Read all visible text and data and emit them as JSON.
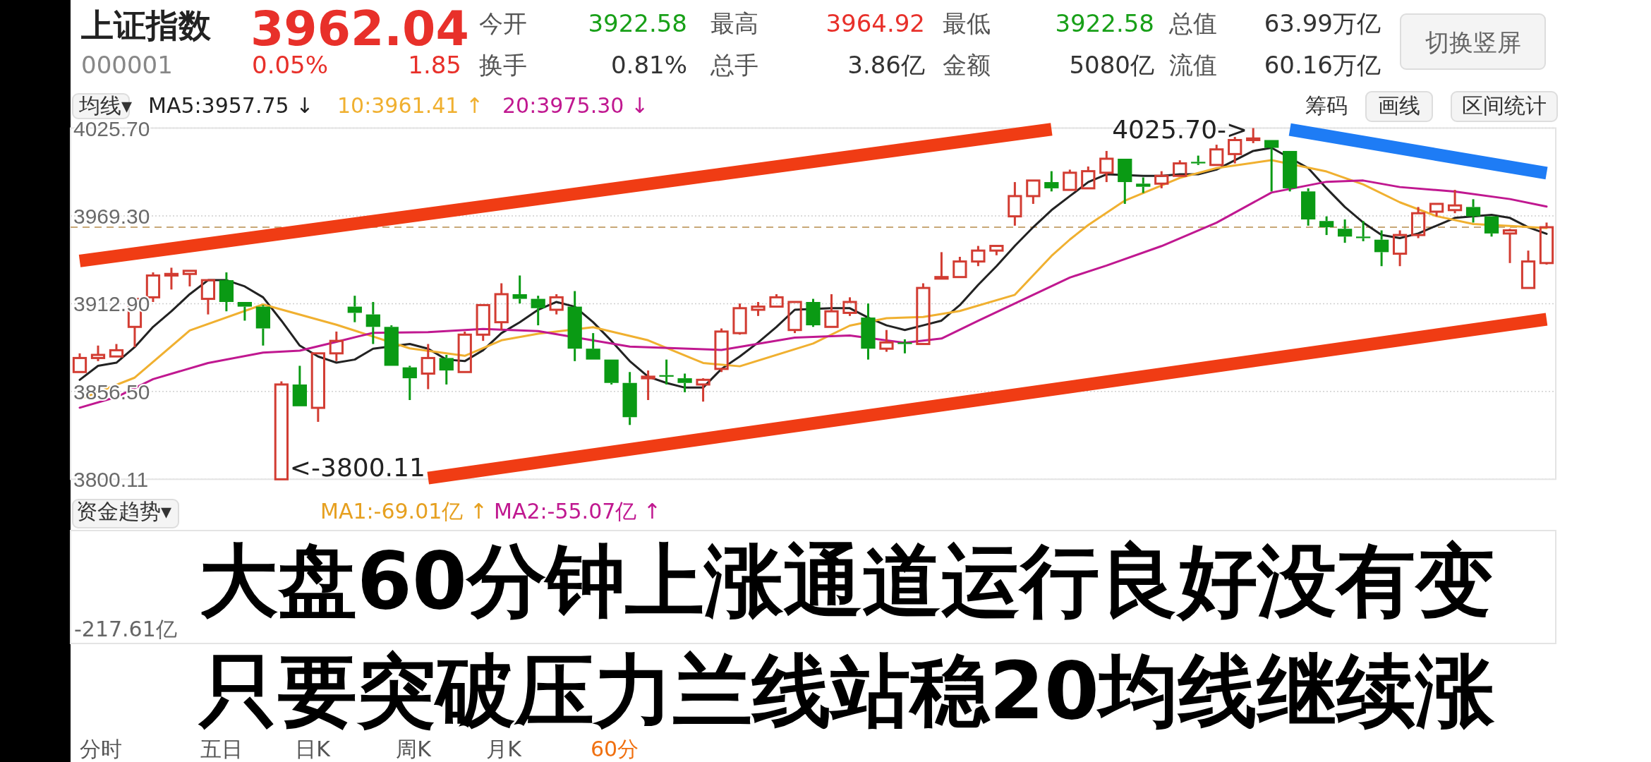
{
  "chart_data": {
    "type": "candlestick",
    "title": "上证指数",
    "categories": [
      null,
      null,
      null,
      null,
      null,
      null,
      null,
      null,
      null,
      null,
      null,
      null,
      null,
      null,
      null,
      null,
      null,
      null,
      null,
      null,
      null,
      null,
      null,
      null,
      null,
      null,
      null,
      null,
      null,
      null,
      null,
      null,
      null,
      null,
      null,
      null,
      null,
      null,
      null,
      null,
      null,
      null,
      null,
      null,
      null,
      null,
      null,
      null,
      null,
      null,
      null,
      null,
      null,
      null,
      null,
      null,
      null,
      null,
      null,
      null,
      null,
      null,
      null,
      null,
      null,
      null,
      null,
      null,
      null,
      null,
      null,
      null,
      null,
      null,
      null,
      null,
      null,
      null,
      null,
      null,
      null
    ],
    "ohlc": [
      [
        3869,
        3881,
        3869,
        3878
      ],
      [
        3878,
        3886,
        3876,
        3880
      ],
      [
        3879,
        3887,
        3879,
        3883
      ],
      [
        3898,
        3916,
        3885,
        3916
      ],
      [
        3917,
        3933,
        3914,
        3931
      ],
      [
        3931,
        3936,
        3922,
        3932
      ],
      [
        3932,
        3934,
        3924,
        3934
      ],
      [
        3916,
        3928,
        3906,
        3928
      ],
      [
        3928,
        3933,
        3908,
        3914
      ],
      [
        3914,
        3914,
        3902,
        3911
      ],
      [
        3911,
        3912,
        3886,
        3897
      ],
      [
        3800.11,
        3863,
        3800.11,
        3861
      ],
      [
        3861,
        3873,
        3847,
        3847
      ],
      [
        3846,
        3881,
        3837,
        3881
      ],
      [
        3881,
        3895,
        3876,
        3889
      ],
      [
        3911,
        3918,
        3901,
        3907
      ],
      [
        3906,
        3914,
        3887,
        3898
      ],
      [
        3898,
        3899,
        3873,
        3873
      ],
      [
        3872,
        3873,
        3851,
        3865
      ],
      [
        3868,
        3887,
        3858,
        3878
      ],
      [
        3878,
        3880,
        3861,
        3870
      ],
      [
        3869,
        3895,
        3869,
        3893
      ],
      [
        3893,
        3912,
        3889,
        3912
      ],
      [
        3901,
        3926,
        3896,
        3919
      ],
      [
        3919,
        3931,
        3913,
        3916
      ],
      [
        3916,
        3918,
        3899,
        3910
      ],
      [
        3909,
        3919,
        3906,
        3917
      ],
      [
        3911,
        3921,
        3876,
        3884
      ],
      [
        3884,
        3894,
        3877,
        3877
      ],
      [
        3877,
        3877,
        3861,
        3862
      ],
      [
        3862,
        3869,
        3835,
        3840
      ],
      [
        3865,
        3870,
        3851,
        3866
      ],
      [
        3867,
        3877,
        3861,
        3866
      ],
      [
        3865,
        3868,
        3856,
        3862
      ],
      [
        3861,
        3865,
        3850,
        3864
      ],
      [
        3871,
        3897,
        3869,
        3895
      ],
      [
        3894,
        3913,
        3893,
        3910
      ],
      [
        3909,
        3914,
        3905,
        3911
      ],
      [
        3911,
        3919,
        3911,
        3917
      ],
      [
        3896,
        3914,
        3894,
        3914
      ],
      [
        3914,
        3916,
        3898,
        3899
      ],
      [
        3898,
        3919,
        3898,
        3908
      ],
      [
        3907,
        3917,
        3905,
        3914
      ],
      [
        3904,
        3913,
        3877,
        3884
      ],
      [
        3884,
        3896,
        3882,
        3888
      ],
      [
        3888,
        3890,
        3881,
        3887
      ],
      [
        3887,
        3926,
        3887,
        3923
      ],
      [
        3929,
        3946,
        3929,
        3930
      ],
      [
        3930,
        3943,
        3930,
        3940
      ],
      [
        3940,
        3950,
        3937,
        3947
      ],
      [
        3947,
        3950,
        3944,
        3950
      ],
      [
        3969,
        3991,
        3963,
        3982
      ],
      [
        3982,
        3992,
        3977,
        3992
      ],
      [
        3991,
        3998,
        3985,
        3987
      ],
      [
        3986,
        3999,
        3986,
        3997
      ],
      [
        3987,
        4001,
        3987,
        3998
      ],
      [
        3997,
        4011,
        3991,
        4006
      ],
      [
        4006,
        4006,
        3977,
        3991
      ],
      [
        3990,
        3994,
        3984,
        3988
      ],
      [
        3990,
        3998,
        3987,
        3995
      ],
      [
        3995,
        4005,
        3995,
        4003
      ],
      [
        4004,
        4008,
        4002,
        4003
      ],
      [
        4002,
        4015,
        4002,
        4012
      ],
      [
        4009,
        4020,
        4003,
        4018
      ],
      [
        4018,
        4025.7,
        4016,
        4019
      ],
      [
        4018,
        4018,
        3985,
        4013
      ],
      [
        4011,
        4011,
        3985,
        3987
      ],
      [
        3985,
        3987,
        3963,
        3967
      ],
      [
        3966,
        3969,
        3957,
        3962
      ],
      [
        3961,
        3967,
        3952,
        3956
      ],
      [
        3956,
        3966,
        3953,
        3955
      ],
      [
        3954,
        3960,
        3937,
        3946
      ],
      [
        3945,
        3960,
        3937,
        3957
      ],
      [
        3957,
        3975,
        3955,
        3971
      ],
      [
        3972,
        3977,
        3969,
        3977
      ],
      [
        3973,
        3986,
        3971,
        3976
      ],
      [
        3975,
        3980,
        3965,
        3969
      ],
      [
        3969,
        3969,
        3956,
        3958
      ],
      [
        3958,
        3961,
        3939,
        3960
      ],
      [
        3923,
        3947,
        3923,
        3940
      ],
      [
        3939,
        3965,
        3938,
        3962
      ]
    ],
    "colors": [
      "#d23c32",
      "#d23c32",
      "#d23c32",
      "#d23c32",
      "#d23c32",
      "#d23c32",
      "#d23c32",
      "#d23c32",
      "#0a9a14",
      "#0a9a14",
      "#0a9a14",
      "#d23c32",
      "#0a9a14",
      "#d23c32",
      "#d23c32",
      "#0a9a14",
      "#0a9a14",
      "#0a9a14",
      "#0a9a14",
      "#d23c32",
      "#0a9a14",
      "#d23c32",
      "#d23c32",
      "#d23c32",
      "#0a9a14",
      "#0a9a14",
      "#d23c32",
      "#0a9a14",
      "#0a9a14",
      "#0a9a14",
      "#0a9a14",
      "#d23c32",
      "#0a9a14",
      "#0a9a14",
      "#d23c32",
      "#d23c32",
      "#d23c32",
      "#d23c32",
      "#d23c32",
      "#d23c32",
      "#0a9a14",
      "#d23c32",
      "#d23c32",
      "#0a9a14",
      "#d23c32",
      "#0a9a14",
      "#d23c32",
      "#d23c32",
      "#d23c32",
      "#d23c32",
      "#d23c32",
      "#d23c32",
      "#d23c32",
      "#0a9a14",
      "#d23c32",
      "#d23c32",
      "#d23c32",
      "#0a9a14",
      "#0a9a14",
      "#d23c32",
      "#d23c32",
      "#0a9a14",
      "#d23c32",
      "#d23c32",
      "#d23c32",
      "#0a9a14",
      "#0a9a14",
      "#0a9a14",
      "#0a9a14",
      "#0a9a14",
      "#0a9a14",
      "#0a9a14",
      "#d23c32",
      "#d23c32",
      "#d23c32",
      "#d23c32",
      "#0a9a14",
      "#0a9a14",
      "#d23c32",
      "#d23c32",
      "#d23c32"
    ],
    "series": [
      {
        "type": "line",
        "name": "MA5:3957.75 ↓",
        "color": "#222222",
        "values": [
          3864,
          3873,
          3875,
          3885,
          3898,
          3908,
          3919,
          3928,
          3928,
          3924,
          3917,
          3902,
          3886,
          3879,
          3875,
          3877,
          3884,
          null,
          3887,
          3884,
          3877,
          3876,
          3883,
          3894,
          3901,
          3909,
          3914,
          3911,
          3901,
          3889,
          3876,
          3866,
          3862,
          3859,
          3859,
          3871,
          3879,
          3888,
          3898,
          3909,
          null,
          3910,
          3910,
          3904,
          3899,
          3896,
          3899,
          3902,
          3912,
          3925,
          3937,
          3950,
          3962,
          3973,
          3982,
          3991,
          3996,
          null,
          3995,
          3995,
          3996,
          3996,
          3999,
          4005,
          4011,
          4013,
          null,
          4000,
          3987,
          3975,
          3965,
          3957,
          3955,
          3958,
          3963,
          3968,
          null,
          3970,
          3968,
          3962,
          3957.75
        ]
      },
      {
        "type": "line",
        "name": "10:3961.41 ↑",
        "color": "#f0b030",
        "values": [
          3851.5,
          null,
          null,
          3865.4,
          null,
          null,
          3895.7,
          null,
          null,
          null,
          3912.4,
          null,
          null,
          null,
          3899.4,
          null,
          null,
          null,
          3884.2,
          null,
          null,
          3879.4,
          null,
          3889.4,
          null,
          3893.6,
          null,
          null,
          3897.8,
          null,
          null,
          3889.4,
          null,
          null,
          3874.8,
          null,
          3872.7,
          null,
          null,
          null,
          3887.3,
          null,
          3898.8,
          null,
          3903.6,
          null,
          3904.4,
          null,
          3908.2,
          null,
          null,
          3918.6,
          null,
          3943.6,
          3954.1,
          3963.4,
          null,
          3979.1,
          null,
          null,
          3993.7,
          null,
          4000,
          null,
          null,
          4005.1,
          null,
          null,
          3997.8,
          null,
          3989.5,
          null,
          3978,
          null,
          3969.1,
          null,
          3964.1,
          null,
          3962.8,
          null,
          3961.41
        ]
      },
      {
        "type": "line",
        "name": "20:3975.30 ↓",
        "color": "#c01890",
        "values": [
          3846.1,
          null,
          3852.9,
          null,
          3864.4,
          null,
          null,
          3874.8,
          null,
          null,
          3881.5,
          null,
          3882.7,
          null,
          3888.4,
          null,
          3894.2,
          null,
          null,
          3894.6,
          null,
          null,
          3896.7,
          null,
          null,
          3895.3,
          null,
          null,
          null,
          null,
          3885.3,
          null,
          null,
          null,
          null,
          3883.2,
          null,
          null,
          null,
          3891.1,
          null,
          null,
          3892.5,
          null,
          null,
          3887.8,
          null,
          3890.5,
          null,
          3901.9,
          null,
          null,
          3918.6,
          null,
          3929.7,
          null,
          3937.4,
          null,
          null,
          3949.9,
          null,
          null,
          3964.9,
          null,
          null,
          3984.3,
          null,
          null,
          3991.2,
          null,
          3992,
          null,
          3987.8,
          null,
          null,
          3984.9,
          null,
          null,
          3980.1,
          null,
          3975.3
        ]
      },
      {
        "type": "line",
        "color": "#f03c14",
        "values": [
          3940.3,
          null,
          null,
          null,
          null,
          null,
          null,
          null,
          null,
          null,
          null,
          null,
          null,
          null,
          null,
          null,
          null,
          null,
          null,
          null,
          null,
          null,
          null,
          null,
          null,
          null,
          null,
          null,
          null,
          null,
          null,
          null,
          null,
          null,
          null,
          null,
          null,
          null,
          null,
          null,
          null,
          null,
          null,
          null,
          null,
          null,
          null,
          null,
          null,
          null,
          null,
          null,
          null,
          4024.9,
          null,
          null,
          null,
          null,
          null,
          null,
          null,
          null,
          null,
          null,
          null,
          null,
          null,
          null,
          null,
          null,
          null,
          null,
          null,
          null,
          null,
          null,
          null,
          null,
          null,
          null,
          null
        ]
      },
      {
        "type": "line",
        "color": "#f03c14",
        "values": [
          null,
          null,
          null,
          null,
          null,
          null,
          null,
          null,
          null,
          null,
          null,
          null,
          null,
          null,
          null,
          null,
          null,
          null,
          null,
          3800.9,
          null,
          null,
          null,
          null,
          null,
          null,
          null,
          null,
          null,
          null,
          null,
          null,
          null,
          null,
          null,
          null,
          null,
          null,
          null,
          null,
          null,
          null,
          null,
          null,
          null,
          null,
          null,
          null,
          null,
          null,
          null,
          null,
          null,
          null,
          null,
          null,
          null,
          null,
          null,
          null,
          null,
          null,
          null,
          null,
          null,
          null,
          null,
          null,
          null,
          null,
          null,
          null,
          null,
          null,
          null,
          null,
          null,
          null,
          null,
          null,
          3902.9
        ]
      },
      {
        "type": "line",
        "color": "#1e7cf5",
        "values": [
          null,
          null,
          null,
          null,
          null,
          null,
          null,
          null,
          null,
          null,
          null,
          null,
          null,
          null,
          null,
          null,
          null,
          null,
          null,
          null,
          null,
          null,
          null,
          null,
          null,
          null,
          null,
          null,
          null,
          null,
          null,
          null,
          null,
          null,
          null,
          null,
          null,
          null,
          null,
          null,
          null,
          null,
          null,
          null,
          null,
          null,
          null,
          null,
          null,
          null,
          null,
          null,
          null,
          null,
          null,
          null,
          null,
          null,
          null,
          null,
          null,
          null,
          null,
          null,
          null,
          null,
          4024.7,
          null,
          null,
          null,
          null,
          null,
          null,
          null,
          null,
          null,
          null,
          null,
          null,
          null,
          3996.7
        ]
      }
    ],
    "ylim": [
      3800.11,
      4025.7
    ],
    "yticks": [
      3800.11,
      {
        "value": 3856.5,
        "label": "3856.50"
      },
      {
        "value": 3912.9,
        "label": "3912.90"
      },
      {
        "value": 3969.3,
        "label": "3969.30"
      },
      {
        "value": 4025.7,
        "label": "4025.70"
      }
    ],
    "tick_labels": "y",
    "grid": "y",
    "ref_lines": [
      {
        "axis": "y",
        "value": 3962.04,
        "color": "#c8a878",
        "line_style": "dashed"
      }
    ],
    "annotations": [
      "000001",
      "3962.04",
      "0.05%",
      "1.85",
      "今开",
      "3922.58",
      "最高",
      "3964.92",
      "最低",
      "3922.58",
      "总值",
      "63.99万亿",
      "换手",
      "0.81%",
      "总手",
      "3.86亿",
      "金额",
      "5080亿",
      "流值",
      "60.16万亿",
      "切换竖屏",
      "均线▾",
      "筹码",
      "画线",
      "区间统计",
      "4025.70->",
      "<-3800.11",
      "资金趋势▾",
      "MA1:-69.01亿 ↑",
      "MA2:-55.07亿 ↑",
      "-217.61亿",
      "分时",
      "五日",
      "日K",
      "周K",
      "月K",
      "60分",
      "大盘60分钟上涨通道运行良好没有变",
      "只要突破压力兰线站稳20均线继续涨"
    ]
  }
}
